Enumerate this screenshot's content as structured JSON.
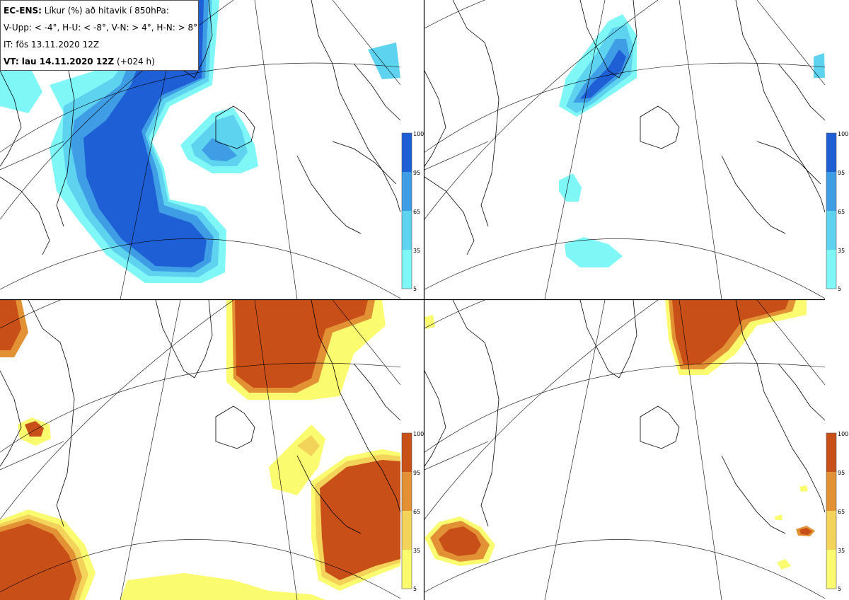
{
  "header": {
    "model": "EC-ENS:",
    "title": "Líkur (%) að hitavik í 850hPa:",
    "thresholds": "V-Upp: < -4°, H-U: < -8°, V-N: > 4°, H-N: > 8°",
    "initial_time": "IT: fös 13.11.2020 12Z",
    "valid_label": "VT: lau 14.11.2020 12Z",
    "lead": "(+024 h)"
  },
  "colors": {
    "cold": [
      "#7ff7f7",
      "#5dd3f0",
      "#3f9de6",
      "#1e5fd6"
    ],
    "warm": [
      "#fbfb6f",
      "#f3d35a",
      "#e39135",
      "#c84f17"
    ],
    "coast": "#000000",
    "grid": "#000000"
  },
  "legend_ticks": [
    "5",
    "35",
    "65",
    "95",
    "100"
  ],
  "panels": [
    {
      "name": "V-Upp",
      "palette": "cold"
    },
    {
      "name": "H-U",
      "palette": "cold"
    },
    {
      "name": "V-N",
      "palette": "warm"
    },
    {
      "name": "H-N",
      "palette": "warm"
    }
  ]
}
